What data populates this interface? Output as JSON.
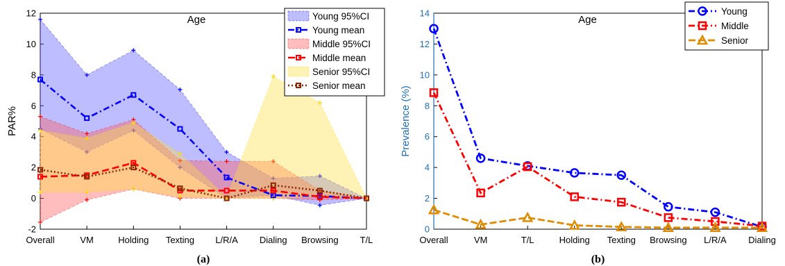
{
  "chart_data": [
    {
      "type": "line",
      "title": "Age",
      "ylabel": "PAR%",
      "xlabel": "",
      "caption": "(a)",
      "categories": [
        "Overall",
        "VM",
        "Holding",
        "Texting",
        "L/R/A",
        "Dialing",
        "Browsing",
        "T/L"
      ],
      "ylim": [
        -2,
        12
      ],
      "yticks": [
        -2,
        0,
        2,
        4,
        6,
        8,
        10,
        12
      ],
      "grid": false,
      "legend_position": "top-right",
      "series": [
        {
          "name": "Young mean",
          "kind": "mean",
          "values": [
            7.7,
            5.2,
            6.7,
            4.5,
            1.35,
            0.2,
            0.15,
            0.0
          ],
          "color": "#0000ff"
        },
        {
          "name": "Middle mean",
          "kind": "mean",
          "values": [
            1.4,
            1.5,
            2.3,
            0.5,
            0.5,
            0.5,
            0.1,
            0.0
          ],
          "color": "#ff0000"
        },
        {
          "name": "Senior mean",
          "kind": "mean",
          "values": [
            1.85,
            1.4,
            2.0,
            0.65,
            0.0,
            0.85,
            0.5,
            0.0
          ],
          "color": "#8b2500"
        }
      ],
      "bands": [
        {
          "name": "Young 95%CI",
          "lower": [
            4.5,
            3.0,
            4.4,
            2.0,
            0.0,
            0.2,
            -0.45,
            0.0
          ],
          "upper": [
            11.6,
            8.0,
            9.6,
            7.05,
            3.0,
            1.3,
            1.45,
            0.0
          ],
          "color": "#0000ff"
        },
        {
          "name": "Middle 95%CI",
          "lower": [
            -1.55,
            -0.1,
            0.6,
            0.0,
            0.0,
            0.0,
            -0.1,
            0.0
          ],
          "upper": [
            5.3,
            4.2,
            5.1,
            2.45,
            2.4,
            2.4,
            0.5,
            0.0
          ],
          "color": "#ff0000"
        },
        {
          "name": "Senior 95%CI",
          "lower": [
            0.4,
            0.4,
            0.6,
            0.1,
            0.0,
            0.0,
            0.1,
            0.0
          ],
          "upper": [
            4.4,
            3.9,
            4.9,
            2.9,
            0.1,
            7.9,
            6.2,
            0.0
          ],
          "color": "#ffd700"
        }
      ],
      "legend": [
        "Young 95%CI",
        "Young mean",
        "Middle 95%CI",
        "Middle mean",
        "Senior 95%CI",
        "Senior mean"
      ]
    },
    {
      "type": "line",
      "title": "Age",
      "ylabel": "Prevalence (%)",
      "xlabel": "",
      "caption": "(b)",
      "categories": [
        "Overall",
        "VM",
        "T/L",
        "Holding",
        "Texting",
        "Browsing",
        "L/R/A",
        "Dialing"
      ],
      "ylim": [
        0,
        14
      ],
      "yticks": [
        0,
        2,
        4,
        6,
        8,
        10,
        12,
        14
      ],
      "grid": false,
      "legend_position": "top-right",
      "series": [
        {
          "name": "Young",
          "marker": "circle",
          "values": [
            13.0,
            4.6,
            4.1,
            3.65,
            3.5,
            1.45,
            1.1,
            0.15
          ],
          "color": "#0000ff"
        },
        {
          "name": "Middle",
          "marker": "square",
          "values": [
            8.85,
            2.35,
            4.05,
            2.1,
            1.75,
            0.75,
            0.5,
            0.2
          ],
          "color": "#ff0000"
        },
        {
          "name": "Senior",
          "marker": "triangle",
          "values": [
            1.25,
            0.3,
            0.75,
            0.25,
            0.15,
            0.1,
            0.1,
            0.1
          ],
          "color": "#e08a00"
        }
      ]
    }
  ]
}
